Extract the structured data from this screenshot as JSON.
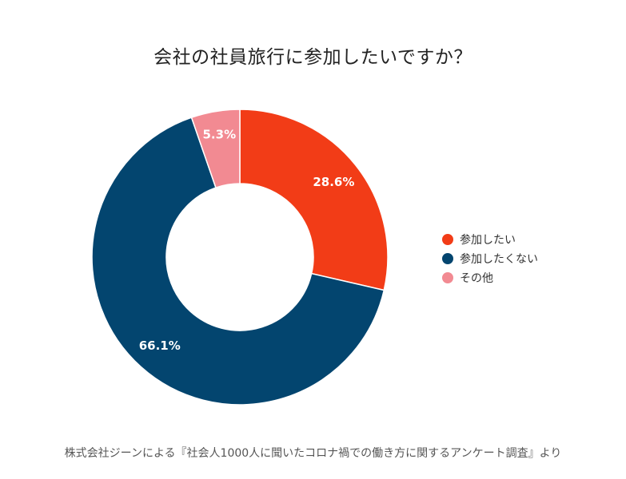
{
  "chart_data": {
    "type": "pie",
    "donut": true,
    "title": "会社の社員旅行に参加したいですか？",
    "categories": [
      "参加したい",
      "参加したくない",
      "その他"
    ],
    "values": [
      28.6,
      66.1,
      5.3
    ],
    "value_labels": [
      "28.6%",
      "66.1%",
      "5.3%"
    ],
    "colors": [
      "#F23C17",
      "#03456F",
      "#F28A92"
    ],
    "legend_position": "right",
    "source": "株式会社ジーンによる『社会人1000人に聞いたコロナ禍での働き方に関するアンケート調査』より"
  }
}
